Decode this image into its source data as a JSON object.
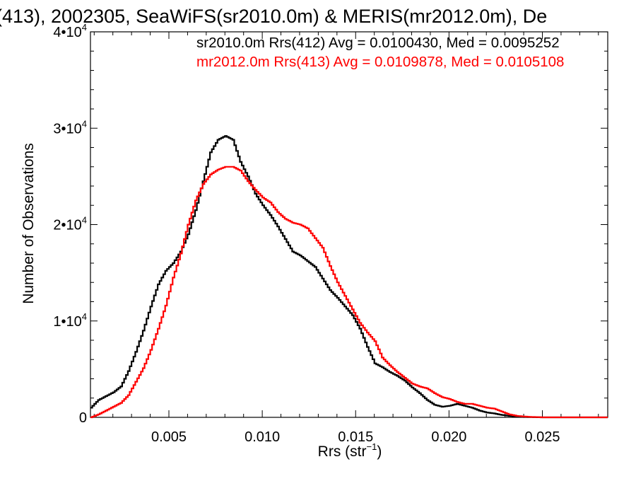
{
  "chart_data": {
    "type": "line",
    "title": "(413), 2002305, SeaWiFS(sr2010.0m) & MERIS(mr2012.0m), De",
    "xlabel": "Rrs (str",
    "xlabel_sup": "−1",
    "xlabel_close": ")",
    "ylabel": "Number of Observations",
    "xlim": [
      0.0008,
      0.0285
    ],
    "ylim": [
      0,
      40000
    ],
    "xticks": [
      {
        "value": 0.005,
        "label": "0.005"
      },
      {
        "value": 0.01,
        "label": "0.010"
      },
      {
        "value": 0.015,
        "label": "0.015"
      },
      {
        "value": 0.02,
        "label": "0.020"
      },
      {
        "value": 0.025,
        "label": "0.025"
      }
    ],
    "yticks": [
      {
        "value": 0,
        "base": "0",
        "exp": ""
      },
      {
        "value": 10000,
        "base": "1•10",
        "exp": "4"
      },
      {
        "value": 20000,
        "base": "2•10",
        "exp": "4"
      },
      {
        "value": 30000,
        "base": "3•10",
        "exp": "4"
      },
      {
        "value": 40000,
        "base": "4•10",
        "exp": "4"
      }
    ],
    "grid": false,
    "step": true,
    "annotations": [
      {
        "text": "sr2010.0m Rrs(412) Avg = 0.0100430, Med = 0.0095252",
        "color": "#000000"
      },
      {
        "text": "mr2012.0m Rrs(413) Avg = 0.0109878, Med = 0.0105108",
        "color": "#ff0000"
      }
    ],
    "series": [
      {
        "color": "#000000",
        "x": [
          0.0008,
          0.0012,
          0.0016,
          0.002,
          0.0024,
          0.0028,
          0.0032,
          0.0036,
          0.004,
          0.0044,
          0.0048,
          0.0052,
          0.0056,
          0.006,
          0.0064,
          0.0068,
          0.0072,
          0.0076,
          0.008,
          0.0084,
          0.0088,
          0.0092,
          0.0096,
          0.01,
          0.0104,
          0.0108,
          0.0112,
          0.0116,
          0.012,
          0.0124,
          0.0128,
          0.0132,
          0.0136,
          0.014,
          0.0144,
          0.0148,
          0.0152,
          0.0156,
          0.016,
          0.0164,
          0.0168,
          0.0172,
          0.0176,
          0.018,
          0.0184,
          0.0188,
          0.0192,
          0.0196,
          0.02,
          0.0204,
          0.0208,
          0.0212,
          0.0216,
          0.022,
          0.0224,
          0.0228,
          0.0232,
          0.0236,
          0.024,
          0.0244,
          0.025,
          0.026,
          0.027,
          0.0285
        ],
        "y": [
          1000,
          1800,
          2200,
          2600,
          3200,
          4800,
          6800,
          9000,
          11500,
          13800,
          15200,
          16000,
          17200,
          19000,
          21500,
          24500,
          27500,
          28800,
          29200,
          28800,
          26500,
          25000,
          23200,
          22000,
          21000,
          19800,
          18500,
          17200,
          16800,
          16200,
          15600,
          14400,
          13200,
          12400,
          11500,
          10600,
          9200,
          7300,
          5600,
          5200,
          4700,
          4300,
          3800,
          3100,
          2500,
          1800,
          1300,
          1100,
          1200,
          1400,
          1200,
          1000,
          700,
          500,
          400,
          250,
          150,
          80,
          40,
          20,
          0,
          0,
          0,
          0
        ]
      },
      {
        "color": "#ff0000",
        "x": [
          0.0008,
          0.0012,
          0.0016,
          0.002,
          0.0024,
          0.0028,
          0.0032,
          0.0036,
          0.004,
          0.0044,
          0.0048,
          0.0052,
          0.0056,
          0.006,
          0.0064,
          0.0068,
          0.0072,
          0.0076,
          0.008,
          0.0084,
          0.0088,
          0.0092,
          0.0096,
          0.01,
          0.0104,
          0.0108,
          0.0112,
          0.0116,
          0.012,
          0.0124,
          0.0128,
          0.0132,
          0.0136,
          0.014,
          0.0144,
          0.0148,
          0.0152,
          0.0156,
          0.016,
          0.0164,
          0.0168,
          0.0172,
          0.0176,
          0.018,
          0.0184,
          0.0188,
          0.0192,
          0.0196,
          0.02,
          0.0204,
          0.0208,
          0.0212,
          0.0216,
          0.022,
          0.0224,
          0.0228,
          0.0232,
          0.0236,
          0.024,
          0.0244,
          0.025,
          0.026,
          0.027,
          0.0285
        ],
        "y": [
          0,
          300,
          700,
          1100,
          1500,
          2300,
          3700,
          5100,
          7000,
          9200,
          11600,
          14500,
          17000,
          20000,
          22500,
          24200,
          25200,
          25700,
          26000,
          26000,
          25600,
          24500,
          23600,
          22800,
          22300,
          21300,
          20600,
          20200,
          20000,
          19600,
          18600,
          17600,
          15700,
          14000,
          12600,
          11200,
          9800,
          8800,
          7900,
          6200,
          5400,
          4700,
          4100,
          3500,
          3200,
          3000,
          2500,
          2100,
          1900,
          1600,
          1400,
          1400,
          1200,
          1000,
          900,
          600,
          300,
          150,
          80,
          40,
          0,
          0,
          0,
          0
        ]
      }
    ]
  }
}
